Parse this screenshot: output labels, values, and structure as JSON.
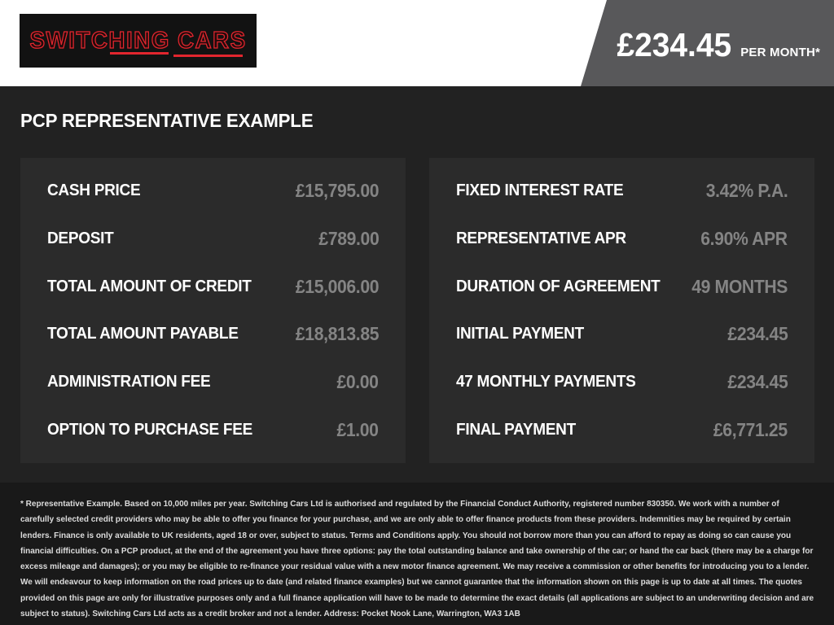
{
  "header": {
    "logo_text": "SWITCHING CARS",
    "price": "£234.45",
    "price_suffix": "PER MONTH*"
  },
  "main": {
    "title": "PCP REPRESENTATIVE EXAMPLE",
    "left_panel": {
      "rows": [
        {
          "label": "CASH PRICE",
          "value": "£15,795.00"
        },
        {
          "label": "DEPOSIT",
          "value": "£789.00"
        },
        {
          "label": "TOTAL AMOUNT OF CREDIT",
          "value": "£15,006.00"
        },
        {
          "label": "TOTAL AMOUNT PAYABLE",
          "value": "£18,813.85"
        },
        {
          "label": "ADMINISTRATION FEE",
          "value": "£0.00"
        },
        {
          "label": "OPTION TO PURCHASE FEE",
          "value": "£1.00"
        }
      ]
    },
    "right_panel": {
      "rows": [
        {
          "label": "FIXED INTEREST RATE",
          "value": "3.42% P.A."
        },
        {
          "label": "REPRESENTATIVE APR",
          "value": "6.90% APR"
        },
        {
          "label": "DURATION OF AGREEMENT",
          "value": "49 MONTHS"
        },
        {
          "label": "INITIAL PAYMENT",
          "value": "£234.45"
        },
        {
          "label": "47 MONTHLY PAYMENTS",
          "value": "£234.45"
        },
        {
          "label": "FINAL PAYMENT",
          "value": "£6,771.25"
        }
      ]
    }
  },
  "footer": {
    "disclaimer": "* Representative Example. Based on 10,000 miles per year. Switching Cars Ltd is authorised and regulated by the Financial Conduct Authority, registered number 830350. We work with a number of carefully selected credit providers who may be able to offer you finance for your purchase, and we are only able to offer finance products from these providers. Indemnities may be required by certain lenders. Finance is only available to UK residents, aged 18 or over, subject to status. Terms and Conditions apply. You should not borrow more than you can afford to repay as doing so can cause you financial difficulties. On a PCP product, at the end of the agreement you have three options: pay the total outstanding balance and take ownership of the car; or hand the car back (there may be a charge for excess mileage and damages); or you may be eligible to re-finance your residual value with a new motor finance agreement. We may receive a commission or other benefits for introducing you to a lender. We will endeavour to keep information on the road prices up to date (and related finance examples) but we cannot guarantee that the information shown on this page is up to date at all times. The quotes provided on this page are only for illustrative purposes only and a full finance application will have to be made to determine the exact details (all applications are subject to an underwriting decision and are subject to status). Switching Cars Ltd acts as a credit broker and not a lender. Address: Pocket Nook Lane, Warrington, WA3 1AB"
  },
  "colors": {
    "accent_red": "#e2262e",
    "price_tag_bg": "#58585a",
    "panel_bg": "#2b2b2b",
    "value_gray": "#848484",
    "topbar_bg": "#ffffff",
    "main_bg": "#222222",
    "footer_bg": "#191919"
  }
}
